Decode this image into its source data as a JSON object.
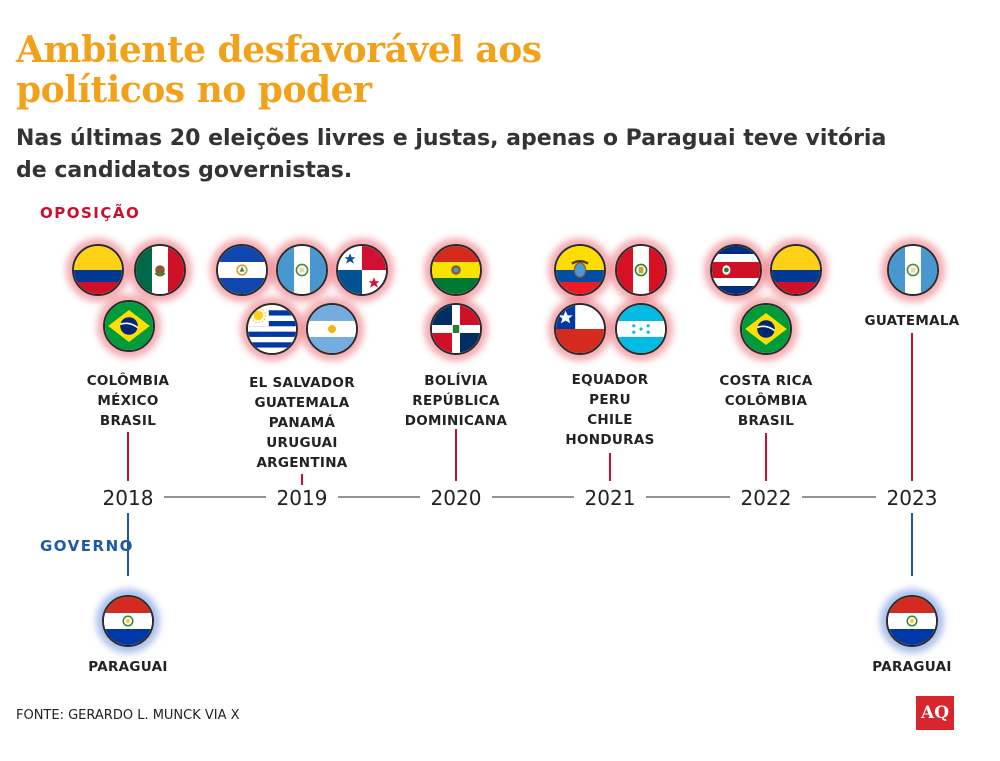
{
  "title": "Ambiente desfavorável aos políticos no poder",
  "subtitle": "Nas últimas 20 eleições livres e justas, apenas o Paraguai teve vitória de candidatos governistas.",
  "labels": {
    "opposition": "OPOSIÇÃO",
    "government": "GOVERNO"
  },
  "source": "FONTE: GERARDO L. MUNCK VIA X",
  "logo": "AQ",
  "colors": {
    "title": "#f2a21a",
    "opposition": "#c8102e",
    "government": "#1c5aa6",
    "timeline": "#555555"
  },
  "chart_data": {
    "type": "timeline",
    "years": [
      "2018",
      "2019",
      "2020",
      "2021",
      "2022",
      "2023"
    ],
    "opposition": [
      {
        "year": "2018",
        "countries": [
          "COLÔMBIA",
          "MÉXICO",
          "BRASIL"
        ],
        "flags": [
          "colombia-flag-icon",
          "mexico-flag-icon",
          "brazil-flag-icon"
        ]
      },
      {
        "year": "2019",
        "countries": [
          "EL SALVADOR",
          "GUATEMALA",
          "PANAMÁ",
          "URUGUAI",
          "ARGENTINA"
        ],
        "flags": [
          "el-salvador-flag-icon",
          "guatemala-flag-icon",
          "panama-flag-icon",
          "uruguay-flag-icon",
          "argentina-flag-icon"
        ]
      },
      {
        "year": "2020",
        "countries": [
          "BOLÍVIA",
          "REPÚBLICA",
          "DOMINICANA"
        ],
        "flags": [
          "bolivia-flag-icon",
          "dominican-republic-flag-icon"
        ]
      },
      {
        "year": "2021",
        "countries": [
          "EQUADOR",
          "PERU",
          "CHILE",
          "HONDURAS"
        ],
        "flags": [
          "ecuador-flag-icon",
          "peru-flag-icon",
          "chile-flag-icon",
          "honduras-flag-icon"
        ]
      },
      {
        "year": "2022",
        "countries": [
          "COSTA RICA",
          "COLÔMBIA",
          "BRASIL"
        ],
        "flags": [
          "costa-rica-flag-icon",
          "colombia-flag-icon",
          "brazil-flag-icon"
        ]
      },
      {
        "year": "2023",
        "countries": [
          "GUATEMALA"
        ],
        "flags": [
          "guatemala-flag-icon"
        ]
      }
    ],
    "government": [
      {
        "year": "2018",
        "countries": [
          "PARAGUAI"
        ],
        "flags": [
          "paraguay-flag-icon"
        ]
      },
      {
        "year": "2023",
        "countries": [
          "PARAGUAI"
        ],
        "flags": [
          "paraguay-flag-icon"
        ]
      }
    ]
  }
}
